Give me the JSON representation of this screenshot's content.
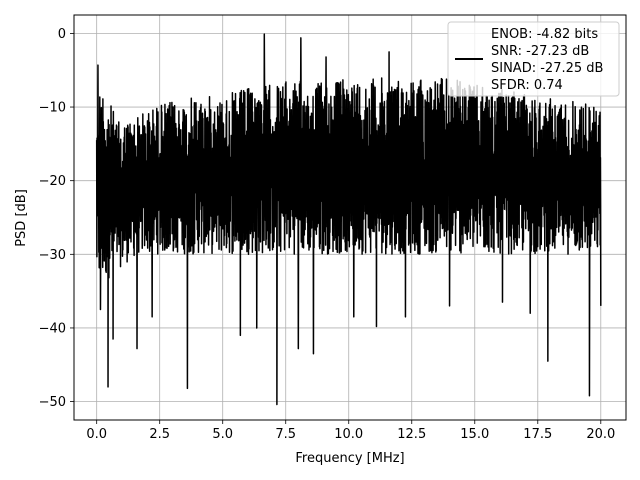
{
  "chart_data": {
    "type": "line",
    "xlabel": "Frequency [MHz]",
    "ylabel": "PSD [dB]",
    "xlim": [
      -0.9,
      21.0
    ],
    "ylim": [
      -52.5,
      2.5
    ],
    "xticks": [
      0.0,
      2.5,
      5.0,
      7.5,
      10.0,
      12.5,
      15.0,
      17.5,
      20.0
    ],
    "xtick_labels": [
      "0.0",
      "2.5",
      "5.0",
      "7.5",
      "10.0",
      "12.5",
      "15.0",
      "17.5",
      "20.0"
    ],
    "yticks": [
      0,
      -10,
      -20,
      -30,
      -40,
      -50
    ],
    "ytick_labels": [
      "0",
      "−10",
      "−20",
      "−30",
      "−40",
      "−50"
    ],
    "grid": true,
    "legend": {
      "placement": "top-right",
      "lines": [
        "ENOB: -4.82 bits",
        "SNR: -27.23 dB",
        "SINAD: -27.25 dB",
        "SFDR: 0.74"
      ]
    },
    "series": [
      {
        "color": "#000000",
        "x_range": [
          0.0,
          20.0
        ],
        "band_top": [
          -4.5,
          -12.0,
          -11.0,
          -9.5,
          -9.0,
          -8.5,
          -8.5,
          -7.5,
          -7.0,
          -6.5,
          -6.5,
          -6.5,
          -6.0,
          -6.0,
          -6.0,
          -6.0,
          -6.0,
          -6.0,
          -7.0,
          -7.5,
          -8.0,
          -8.5,
          -9.0,
          -9.0,
          -10.0
        ],
        "band_bottom": [
          -35.0,
          -32.0,
          -30.0,
          -30.0,
          -30.0,
          -30.0,
          -30.0,
          -30.0,
          -30.0,
          -30.0,
          -30.0,
          -30.0,
          -30.0,
          -30.0,
          -30.0,
          -30.0,
          -30.0,
          -30.0,
          -30.0,
          -30.0,
          -30.0,
          -30.0,
          -30.0,
          -30.0,
          -30.0
        ],
        "peaks": [
          {
            "x": 0.05,
            "y": -4.3
          },
          {
            "x": 6.65,
            "y": -0.1
          },
          {
            "x": 8.1,
            "y": -0.6
          },
          {
            "x": 9.1,
            "y": -3.2
          },
          {
            "x": 11.6,
            "y": -2.5
          }
        ],
        "dips": [
          {
            "x": 0.15,
            "y": -37.5
          },
          {
            "x": 0.45,
            "y": -48.0
          },
          {
            "x": 0.65,
            "y": -41.5
          },
          {
            "x": 1.6,
            "y": -42.8
          },
          {
            "x": 2.2,
            "y": -38.5
          },
          {
            "x": 3.6,
            "y": -48.2
          },
          {
            "x": 5.7,
            "y": -41.0
          },
          {
            "x": 6.35,
            "y": -40.0
          },
          {
            "x": 7.15,
            "y": -50.4
          },
          {
            "x": 8.0,
            "y": -42.8
          },
          {
            "x": 8.6,
            "y": -43.5
          },
          {
            "x": 10.2,
            "y": -38.5
          },
          {
            "x": 11.1,
            "y": -39.8
          },
          {
            "x": 12.25,
            "y": -38.5
          },
          {
            "x": 14.0,
            "y": -37.0
          },
          {
            "x": 16.1,
            "y": -36.5
          },
          {
            "x": 17.2,
            "y": -38.0
          },
          {
            "x": 17.9,
            "y": -44.5
          },
          {
            "x": 19.55,
            "y": -49.2
          },
          {
            "x": 20.0,
            "y": -37.0
          }
        ]
      }
    ]
  }
}
